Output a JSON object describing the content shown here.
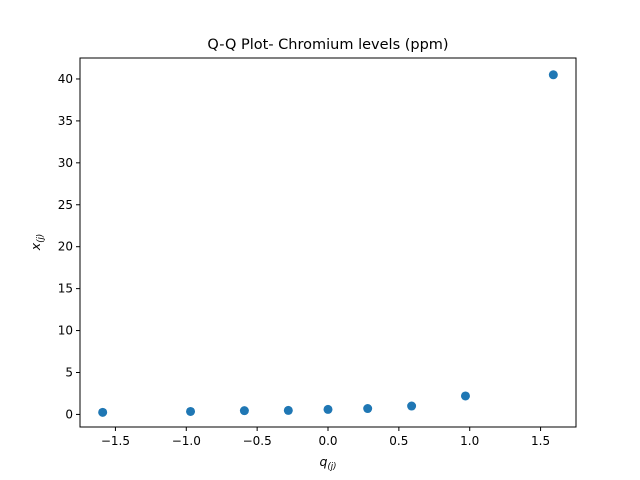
{
  "chart_data": {
    "type": "scatter",
    "title": "Q-Q Plot- Chromium levels (ppm)",
    "xlabel": {
      "base": "q",
      "sub": "(j)"
    },
    "ylabel": {
      "base": "x",
      "sub": "(j)"
    },
    "xlim": [
      -1.75,
      1.75
    ],
    "ylim": [
      -1.5,
      42.5
    ],
    "xticks": [
      -1.5,
      -1.0,
      -0.5,
      0.0,
      0.5,
      1.0,
      1.5
    ],
    "xtick_labels": [
      "−1.5",
      "−1.0",
      "−0.5",
      "0.0",
      "0.5",
      "1.0",
      "1.5"
    ],
    "yticks": [
      0,
      5,
      10,
      15,
      20,
      25,
      30,
      35,
      40
    ],
    "ytick_labels": [
      "0",
      "5",
      "10",
      "15",
      "20",
      "25",
      "30",
      "35",
      "40"
    ],
    "grid": false,
    "color": "#1f77b4",
    "points": [
      {
        "x": -1.59,
        "y": 0.25
      },
      {
        "x": -0.97,
        "y": 0.35
      },
      {
        "x": -0.59,
        "y": 0.45
      },
      {
        "x": -0.28,
        "y": 0.48
      },
      {
        "x": 0.0,
        "y": 0.6
      },
      {
        "x": 0.28,
        "y": 0.7
      },
      {
        "x": 0.59,
        "y": 1.0
      },
      {
        "x": 0.97,
        "y": 2.2
      },
      {
        "x": 1.59,
        "y": 40.5
      }
    ]
  }
}
